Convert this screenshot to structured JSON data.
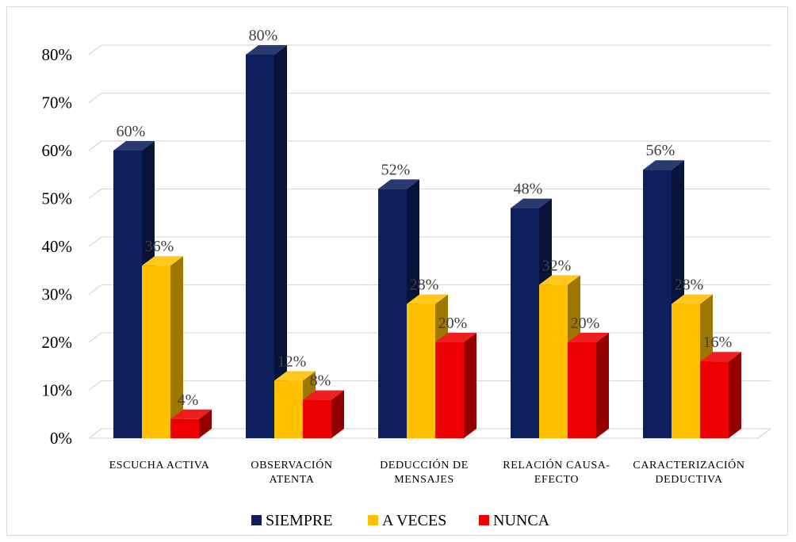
{
  "chart_data": {
    "type": "bar",
    "title": "",
    "xlabel": "",
    "ylabel": "",
    "ylim": [
      0,
      80
    ],
    "y_ticks": [
      "0%",
      "10%",
      "20%",
      "30%",
      "40%",
      "50%",
      "60%",
      "70%",
      "80%"
    ],
    "grid": true,
    "legend_position": "bottom",
    "categories": [
      [
        "ESCUCHA ACTIVA"
      ],
      [
        "OBSERVACIÓN",
        "ATENTA"
      ],
      [
        "DEDUCCIÓN DE",
        "MENSAJES"
      ],
      [
        "RELACIÓN CAUSA-",
        "EFECTO"
      ],
      [
        "CARACTERIZACIÓN",
        "DEDUCTIVA"
      ]
    ],
    "series": [
      {
        "name": "SIEMPRE",
        "color": "#0d1f5c",
        "values": [
          60,
          80,
          52,
          48,
          56
        ],
        "labels": [
          "60%",
          "80%",
          "52%",
          "48%",
          "56%"
        ]
      },
      {
        "name": "A VECES",
        "color": "#ffc000",
        "values": [
          36,
          12,
          28,
          32,
          28
        ],
        "labels": [
          "36%",
          "12%",
          "28%",
          "32%",
          "28%"
        ]
      },
      {
        "name": "NUNCA",
        "color": "#ee0000",
        "values": [
          4,
          8,
          20,
          20,
          16
        ],
        "labels": [
          "4%",
          "8%",
          "20%",
          "20%",
          "16%"
        ]
      }
    ]
  }
}
